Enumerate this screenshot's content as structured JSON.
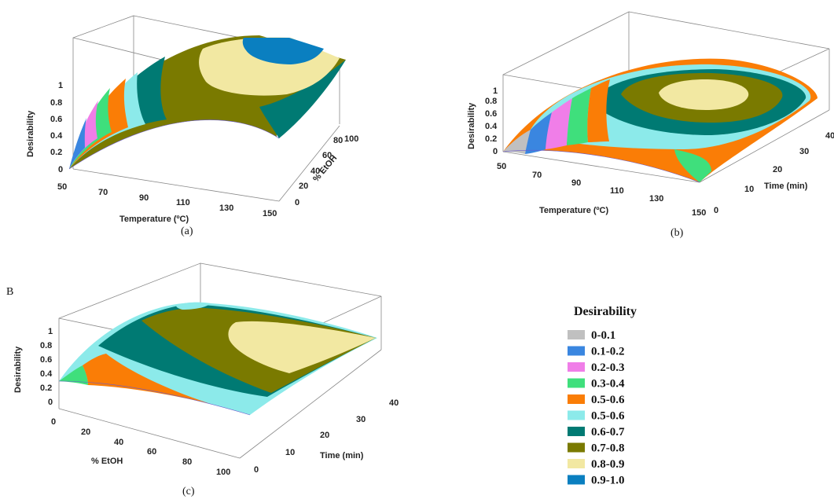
{
  "colors": {
    "c0": "#c0c0c0",
    "c1": "#3a86e0",
    "c2": "#f07ee8",
    "c3": "#3fdf7c",
    "c4": "#fa7d06",
    "c5": "#8ceaea",
    "c6": "#007a73",
    "c7": "#7a7a00",
    "c8": "#f2e8a2",
    "c9": "#0a7fc0"
  },
  "legend": {
    "title": "Desirability",
    "items": [
      {
        "label": "0-0.1",
        "color": "#c0c0c0"
      },
      {
        "label": "0.1-0.2",
        "color": "#3a86e0"
      },
      {
        "label": "0.2-0.3",
        "color": "#f07ee8"
      },
      {
        "label": "0.3-0.4",
        "color": "#3fdf7c"
      },
      {
        "label": "0.5-0.6",
        "color": "#fa7d06"
      },
      {
        "label": "0.5-0.6",
        "color": "#8ceaea"
      },
      {
        "label": "0.6-0.7",
        "color": "#007a73"
      },
      {
        "label": "0.7-0.8",
        "color": "#7a7a00"
      },
      {
        "label": "0.8-0.9",
        "color": "#f2e8a2"
      },
      {
        "label": "0.9-1.0",
        "color": "#0a7fc0"
      }
    ]
  },
  "chart_data": [
    {
      "type": "surface3d",
      "panel_label": "(a)",
      "zlabel": "Desirability",
      "xlabel": "Temperature (ºC)",
      "ylabel": "% EtOH",
      "z_ticks": [
        "0",
        "0.2",
        "0.4",
        "0.6",
        "0.8",
        "1"
      ],
      "x_ticks": [
        "50",
        "70",
        "90",
        "110",
        "130",
        "150"
      ],
      "y_ticks": [
        "0",
        "20",
        "40",
        "60",
        "80",
        "100"
      ],
      "zlim": [
        0,
        1
      ],
      "xlim": [
        50,
        150
      ],
      "ylim": [
        0,
        100
      ]
    },
    {
      "type": "surface3d",
      "panel_label": "(b)",
      "zlabel": "Desirability",
      "xlabel": "Temperature (ºC)",
      "ylabel": "Time (min)",
      "z_ticks": [
        "0",
        "0.2",
        "0.4",
        "0.6",
        "0.8",
        "1"
      ],
      "x_ticks": [
        "50",
        "70",
        "90",
        "110",
        "130",
        "150"
      ],
      "y_ticks": [
        "0",
        "10",
        "20",
        "30",
        "40"
      ],
      "zlim": [
        0,
        1
      ],
      "xlim": [
        50,
        150
      ],
      "ylim": [
        0,
        40
      ]
    },
    {
      "type": "surface3d",
      "panel_label": "(c)",
      "corner_label": "B",
      "zlabel": "Desirability",
      "xlabel": "% EtOH",
      "ylabel": "Time (min)",
      "z_ticks": [
        "0",
        "0.2",
        "0.4",
        "0.6",
        "0.8",
        "1"
      ],
      "x_ticks": [
        "0",
        "20",
        "40",
        "60",
        "80",
        "100"
      ],
      "y_ticks": [
        "0",
        "10",
        "20",
        "30",
        "40"
      ],
      "zlim": [
        0,
        1
      ],
      "xlim": [
        0,
        100
      ],
      "ylim": [
        0,
        40
      ]
    }
  ]
}
